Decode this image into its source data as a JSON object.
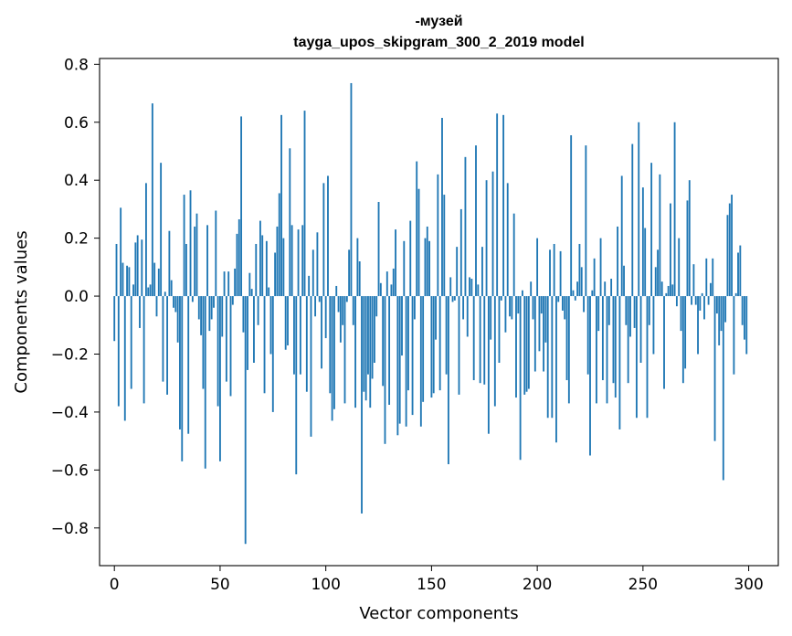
{
  "chart_data": {
    "type": "bar",
    "title": "-музей",
    "subtitle": "tayga_upos_skipgram_300_2_2019 model",
    "xlabel": "Vector components",
    "ylabel": "Components values",
    "xlim": [
      -7,
      314
    ],
    "ylim": [
      -0.93,
      0.82
    ],
    "xticks": [
      0,
      50,
      100,
      150,
      200,
      250,
      300
    ],
    "xtick_labels": [
      "0",
      "50",
      "100",
      "150",
      "200",
      "250",
      "300"
    ],
    "yticks": [
      -0.8,
      -0.6,
      -0.4,
      -0.2,
      0.0,
      0.2,
      0.4,
      0.6,
      0.8
    ],
    "ytick_labels": [
      "−0.8",
      "−0.6",
      "−0.4",
      "−0.2",
      "0.0",
      "0.2",
      "0.4",
      "0.6",
      "0.8"
    ],
    "color": "#1f77b4",
    "grid": false,
    "series": [
      {
        "name": "-музей",
        "values": [
          -0.155,
          0.18,
          -0.38,
          0.305,
          0.115,
          -0.43,
          0.105,
          0.1,
          -0.32,
          0.04,
          0.185,
          0.21,
          -0.11,
          0.195,
          -0.37,
          0.39,
          0.03,
          0.04,
          0.665,
          0.115,
          -0.07,
          0.095,
          0.46,
          -0.295,
          0.015,
          -0.34,
          0.225,
          0.055,
          -0.04,
          -0.055,
          -0.16,
          -0.46,
          -0.57,
          0.35,
          0.18,
          -0.475,
          0.365,
          -0.02,
          0.24,
          0.285,
          -0.08,
          -0.135,
          -0.32,
          -0.595,
          0.245,
          -0.12,
          -0.08,
          -0.04,
          0.295,
          -0.38,
          -0.57,
          -0.14,
          0.085,
          -0.295,
          0.085,
          -0.345,
          -0.03,
          0.095,
          0.215,
          0.265,
          0.62,
          -0.125,
          -0.855,
          -0.255,
          0.08,
          0.025,
          -0.23,
          0.18,
          -0.1,
          0.26,
          0.21,
          -0.335,
          0.19,
          0.03,
          -0.2,
          -0.4,
          0.15,
          0.24,
          0.355,
          0.625,
          0.2,
          -0.185,
          -0.17,
          0.51,
          0.245,
          -0.27,
          -0.615,
          0.23,
          -0.27,
          0.245,
          0.64,
          -0.33,
          0.07,
          -0.485,
          0.16,
          -0.07,
          0.22,
          -0.02,
          -0.25,
          0.39,
          -0.145,
          0.415,
          -0.335,
          -0.43,
          -0.39,
          0.035,
          -0.055,
          -0.16,
          -0.1,
          -0.37,
          -0.02,
          0.16,
          0.735,
          -0.1,
          -0.385,
          0.2,
          0.12,
          -0.75,
          -0.33,
          -0.36,
          -0.27,
          -0.385,
          -0.285,
          -0.23,
          -0.07,
          0.325,
          0.045,
          -0.31,
          -0.51,
          0.085,
          -0.375,
          0.04,
          0.095,
          0.23,
          -0.48,
          -0.44,
          -0.205,
          0.19,
          -0.45,
          -0.325,
          0.26,
          -0.41,
          -0.08,
          0.465,
          0.37,
          -0.45,
          -0.365,
          0.2,
          0.24,
          0.19,
          -0.35,
          -0.335,
          -0.15,
          0.42,
          -0.325,
          0.615,
          0.35,
          -0.27,
          -0.58,
          0.065,
          -0.02,
          -0.015,
          0.17,
          -0.34,
          0.3,
          -0.08,
          0.48,
          -0.14,
          0.065,
          0.06,
          -0.29,
          0.52,
          0.04,
          -0.3,
          0.17,
          -0.305,
          0.4,
          -0.475,
          -0.15,
          0.43,
          -0.38,
          0.63,
          -0.23,
          -0.015,
          0.625,
          -0.125,
          0.39,
          -0.07,
          -0.08,
          0.285,
          -0.35,
          -0.06,
          -0.565,
          0.02,
          -0.34,
          -0.33,
          -0.32,
          0.05,
          -0.08,
          -0.26,
          0.2,
          -0.19,
          -0.06,
          -0.26,
          -0.16,
          -0.42,
          0.16,
          -0.42,
          0.18,
          -0.505,
          -0.02,
          0.155,
          -0.05,
          -0.08,
          -0.29,
          -0.37,
          0.555,
          0.02,
          -0.015,
          0.05,
          0.18,
          0.1,
          -0.055,
          0.52,
          -0.27,
          -0.55,
          0.02,
          0.13,
          -0.37,
          -0.12,
          0.2,
          -0.29,
          0.05,
          -0.37,
          -0.1,
          0.06,
          -0.3,
          -0.35,
          0.24,
          -0.46,
          0.415,
          0.105,
          -0.1,
          -0.3,
          -0.14,
          0.525,
          -0.11,
          -0.42,
          0.6,
          -0.23,
          0.375,
          0.235,
          -0.42,
          -0.1,
          0.46,
          -0.2,
          0.1,
          0.16,
          0.42,
          0.05,
          -0.32,
          0.01,
          0.035,
          0.32,
          0.04,
          0.6,
          -0.035,
          0.2,
          -0.12,
          -0.3,
          -0.25,
          0.33,
          0.4,
          -0.03,
          0.11,
          -0.03,
          -0.2,
          -0.05,
          0.01,
          -0.08,
          0.13,
          -0.03,
          0.045,
          0.13,
          -0.5,
          -0.06,
          -0.17,
          -0.12,
          -0.635,
          -0.09,
          0.28,
          0.32,
          0.35,
          -0.27,
          0.01,
          0.15,
          0.175,
          -0.1,
          -0.15,
          -0.2
        ]
      }
    ]
  }
}
